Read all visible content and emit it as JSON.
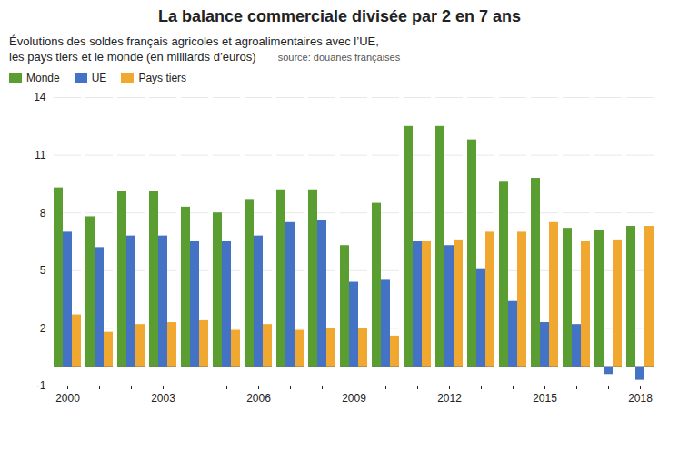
{
  "chart_data": {
    "type": "bar",
    "title": "La balance commerciale divisée par 2 en 7 ans",
    "subtitle": [
      "Évolutions des soldes français agricoles et agroalimentaires avec l’UE,",
      "les pays tiers et le monde (en milliards d’euros)"
    ],
    "annotations": [
      "source: douanes françaises"
    ],
    "categories": [
      "2000",
      null,
      null,
      "2003",
      null,
      null,
      "2006",
      null,
      null,
      "2009",
      null,
      null,
      "2012",
      null,
      null,
      "2015",
      null,
      null,
      "2018"
    ],
    "series": [
      {
        "name": "Monde",
        "color": "#5a9e32",
        "values": [
          9.3,
          7.8,
          9.1,
          9.1,
          8.3,
          8.0,
          8.7,
          9.2,
          9.2,
          6.3,
          8.5,
          12.5,
          12.5,
          11.8,
          9.6,
          9.8,
          7.2,
          7.1,
          7.3
        ]
      },
      {
        "name": "UE",
        "color": "#4472c4",
        "values": [
          7.0,
          6.2,
          6.8,
          6.8,
          6.5,
          6.5,
          6.8,
          7.5,
          7.6,
          4.4,
          4.5,
          6.5,
          6.3,
          5.1,
          3.4,
          2.3,
          2.2,
          -0.4,
          -0.7
        ]
      },
      {
        "name": "Pays tiers",
        "color": "#f0a830",
        "values": [
          2.7,
          1.8,
          2.2,
          2.3,
          2.4,
          1.9,
          2.2,
          1.9,
          2.0,
          2.0,
          1.6,
          6.5,
          6.6,
          7.0,
          7.0,
          7.5,
          6.5,
          6.6,
          7.3
        ]
      }
    ],
    "ylim": [
      -1,
      14
    ],
    "yticks": [
      -1,
      2,
      5,
      8,
      11,
      14
    ],
    "grid": true,
    "legend": "upper left"
  }
}
